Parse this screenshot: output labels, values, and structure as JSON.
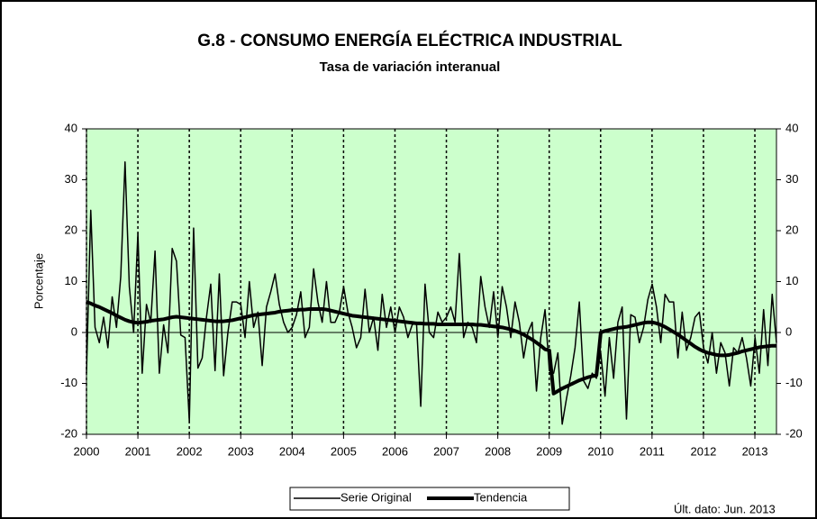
{
  "chart_data": {
    "type": "line",
    "title": "G.8 - CONSUMO ENERGÍA ELÉCTRICA INDUSTRIAL",
    "subtitle": "Tasa de variación interanual",
    "y_label": "Porcentaje",
    "annotation": "Últ. dato: Jun. 2013",
    "xlim": [
      2000,
      2013.42
    ],
    "xticks": [
      2000,
      2001,
      2002,
      2003,
      2004,
      2005,
      2006,
      2007,
      2008,
      2009,
      2010,
      2011,
      2012,
      2013
    ],
    "ylim": [
      -20,
      40
    ],
    "yticks": [
      -20,
      -10,
      0,
      10,
      20,
      30,
      40
    ],
    "y2lim": [
      -20,
      40
    ],
    "y2ticks": [
      -20,
      -10,
      0,
      10,
      20,
      30,
      40
    ],
    "grid": true,
    "background": "#ccffcc",
    "legend": "bottom",
    "series": [
      {
        "name": "Serie Original",
        "color": "#000000",
        "width": 1.5,
        "values": [
          -8,
          24,
          1,
          -2,
          3,
          -3,
          7,
          1,
          11,
          33.5,
          9,
          0,
          19.5,
          -8,
          5.5,
          2,
          16,
          -8,
          1.5,
          -4,
          16.5,
          14,
          -0.5,
          -1,
          -17.5,
          20.5,
          -7,
          -5,
          3,
          9.5,
          -7.5,
          11.5,
          -8.5,
          0,
          6,
          6,
          5.5,
          -1,
          10,
          1,
          4,
          -6.5,
          5,
          8,
          11.5,
          5.5,
          2,
          0,
          1,
          3.5,
          8,
          -1,
          1,
          12.5,
          6,
          2,
          10,
          2,
          2,
          4,
          9,
          4,
          1,
          -3,
          -1,
          8.5,
          0,
          3,
          -3.5,
          7.5,
          1,
          5,
          0,
          5,
          3,
          -1,
          1.5,
          2,
          -14.5,
          9.5,
          0,
          -1,
          4,
          2,
          3,
          5,
          2,
          15.5,
          -1,
          2,
          1,
          -2,
          11,
          5,
          1,
          8,
          -1,
          9,
          5,
          -1,
          6,
          2,
          -5,
          0,
          2,
          -11.5,
          -1,
          4.5,
          -7.5,
          -8,
          -4,
          -18,
          -13,
          -8.5,
          -3,
          6,
          -9.5,
          -11,
          -8,
          -9,
          -4,
          -12.5,
          -1,
          -9,
          2,
          5,
          -17,
          3.5,
          3,
          -2,
          1,
          6.5,
          9.5,
          5,
          -2,
          7.5,
          6,
          6,
          -5,
          4,
          -3.5,
          -1,
          3,
          4,
          -3,
          -6,
          0,
          -8,
          -2,
          -4,
          -10.5,
          -3,
          -4,
          -1,
          -5,
          -10.5,
          -1,
          -8,
          4.5,
          -6.5,
          7.5,
          -2
        ]
      },
      {
        "name": "Tendencia",
        "color": "#000000",
        "width": 4,
        "values": [
          6,
          5.7,
          5.3,
          5,
          4.6,
          4.2,
          3.8,
          3.3,
          2.9,
          2.5,
          2.2,
          2,
          1.9,
          2,
          2.1,
          2.3,
          2.4,
          2.5,
          2.6,
          2.8,
          3,
          3.1,
          3,
          2.9,
          2.8,
          2.7,
          2.6,
          2.5,
          2.4,
          2.3,
          2.2,
          2.2,
          2.2,
          2.3,
          2.4,
          2.6,
          2.8,
          3,
          3.2,
          3.4,
          3.5,
          3.6,
          3.7,
          3.8,
          3.9,
          4.1,
          4.2,
          4.3,
          4.4,
          4.4,
          4.5,
          4.5,
          4.6,
          4.6,
          4.6,
          4.6,
          4.5,
          4.3,
          4.1,
          3.9,
          3.7,
          3.5,
          3.3,
          3.2,
          3.1,
          3,
          2.9,
          2.8,
          2.7,
          2.6,
          2.5,
          2.4,
          2.3,
          2.2,
          2.1,
          2,
          1.9,
          1.8,
          1.8,
          1.7,
          1.7,
          1.7,
          1.6,
          1.6,
          1.6,
          1.6,
          1.6,
          1.6,
          1.6,
          1.6,
          1.6,
          1.5,
          1.5,
          1.4,
          1.3,
          1.2,
          1.1,
          1,
          0.8,
          0.6,
          0.3,
          0,
          -0.4,
          -0.9,
          -1.4,
          -2,
          -2.6,
          -3.3,
          -3.5,
          -12,
          -11.5,
          -11,
          -10.6,
          -10.2,
          -9.8,
          -9.4,
          -9.1,
          -8.8,
          -8.6,
          -8.4,
          0,
          0.3,
          0.5,
          0.7,
          0.9,
          1,
          1.1,
          1.3,
          1.5,
          1.7,
          1.9,
          2,
          2,
          1.8,
          1.5,
          1.1,
          0.6,
          0.1,
          -0.4,
          -1,
          -1.6,
          -2.2,
          -2.8,
          -3.3,
          -3.7,
          -4,
          -4.2,
          -4.4,
          -4.5,
          -4.5,
          -4.4,
          -4.2,
          -4,
          -3.7,
          -3.5,
          -3.3,
          -3.1,
          -2.9,
          -2.8,
          -2.7,
          -2.6,
          -2.6
        ]
      }
    ]
  }
}
